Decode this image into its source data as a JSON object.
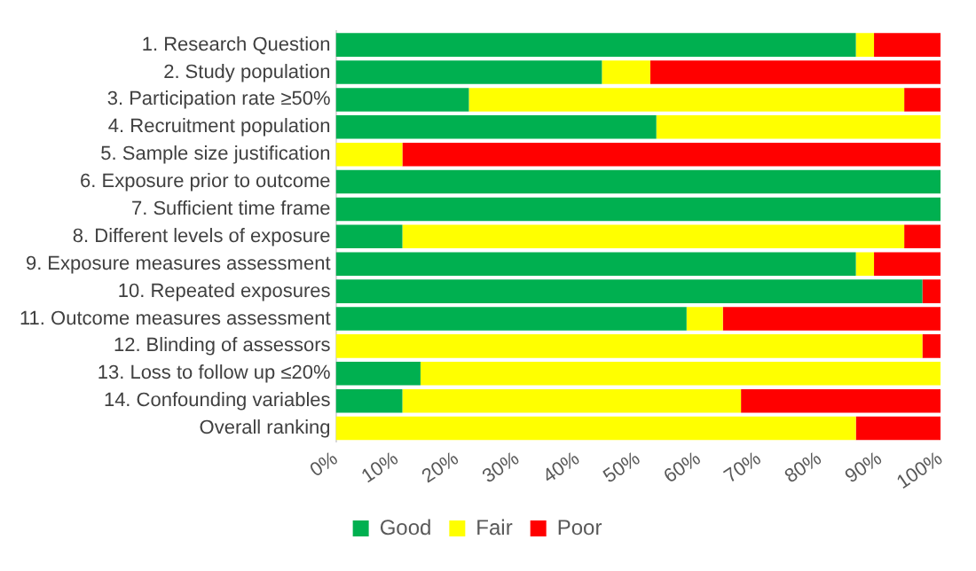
{
  "chart_data": {
    "type": "bar",
    "orientation": "horizontal",
    "stacked": true,
    "categories": [
      "1. Research Question",
      "2. Study population",
      "3. Participation rate ≥50%",
      "4. Recruitment population",
      "5. Sample size justification",
      "6. Exposure prior to outcome",
      "7. Sufficient time frame",
      "8. Different levels of exposure",
      "9. Exposure measures assessment",
      "10. Repeated exposures",
      "11. Outcome measures assessment",
      "12. Blinding of assessors",
      "13. Loss to follow up ≤20%",
      "14. Confounding variables",
      "Overall ranking"
    ],
    "series": [
      {
        "name": "Good",
        "color": "#00b050",
        "values": [
          86,
          44,
          22,
          53,
          0,
          100,
          100,
          11,
          86,
          97,
          58,
          0,
          14,
          11,
          0
        ]
      },
      {
        "name": "Fair",
        "color": "#ffff00",
        "values": [
          3,
          8,
          72,
          47,
          11,
          0,
          0,
          83,
          3,
          0,
          6,
          97,
          86,
          56,
          86
        ]
      },
      {
        "name": "Poor",
        "color": "#ff0000",
        "values": [
          11,
          48,
          6,
          0,
          89,
          0,
          0,
          6,
          11,
          3,
          36,
          3,
          0,
          33,
          14
        ]
      }
    ],
    "xlim": [
      0,
      100
    ],
    "xticks": [
      {
        "value": 0,
        "label": "0%"
      },
      {
        "value": 10,
        "label": "10%"
      },
      {
        "value": 20,
        "label": "20%"
      },
      {
        "value": 30,
        "label": "30%"
      },
      {
        "value": 40,
        "label": "40%"
      },
      {
        "value": 50,
        "label": "50%"
      },
      {
        "value": 60,
        "label": "60%"
      },
      {
        "value": 70,
        "label": "70%"
      },
      {
        "value": 80,
        "label": "80%"
      },
      {
        "value": 90,
        "label": "90%"
      },
      {
        "value": 100,
        "label": "100%"
      }
    ],
    "grid": false,
    "legend": "bottom"
  }
}
